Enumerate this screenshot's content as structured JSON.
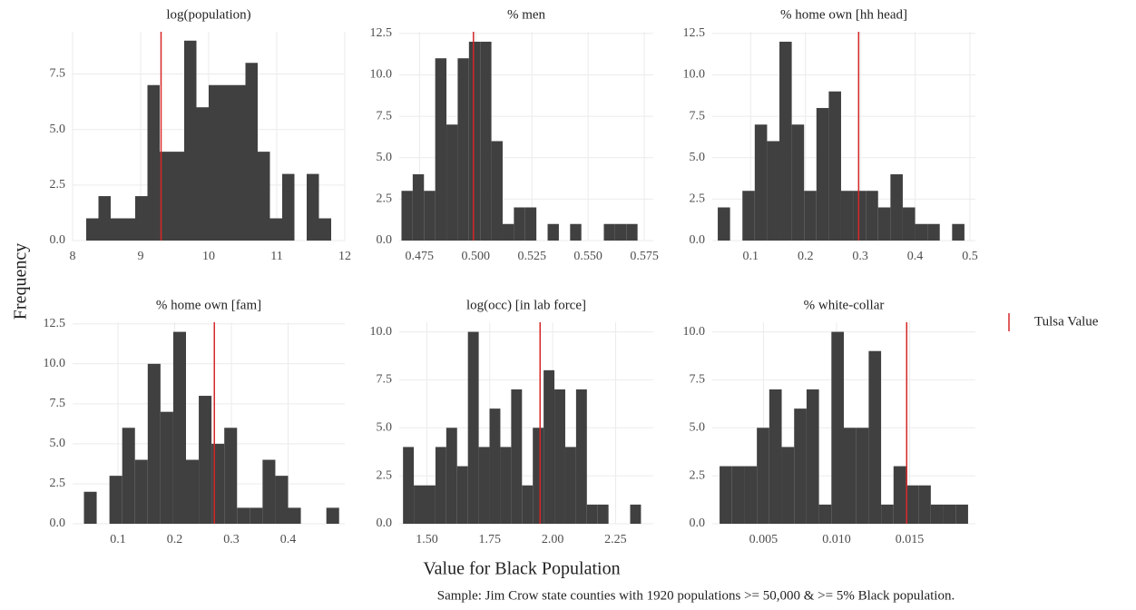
{
  "chart_data": [
    {
      "type": "histogram",
      "title": "log(population)",
      "color": "#404040",
      "grid": true,
      "bins": [
        8.2,
        8.38,
        8.56,
        8.74,
        8.92,
        9.1,
        9.28,
        9.46,
        9.64,
        9.82,
        10,
        10.18,
        10.36,
        10.54,
        10.72,
        10.9,
        11.08,
        11.26,
        11.44,
        11.62,
        11.8
      ],
      "values": [
        1,
        2,
        1,
        1,
        2,
        7,
        4,
        4,
        9,
        6,
        7,
        7,
        7,
        8,
        4,
        1,
        3,
        0,
        3,
        1
      ],
      "xlim": [
        8,
        12
      ],
      "xticks": [
        8,
        9,
        10,
        11,
        12
      ],
      "ylim": [
        0,
        9.4
      ],
      "yticks": [
        {
          "value": 0,
          "label": "0.0"
        },
        2.5,
        {
          "value": 5,
          "label": "5.0"
        },
        7.5
      ],
      "reference_line": 9.3,
      "reference_color": "#d62728"
    },
    {
      "type": "histogram",
      "title": "% men",
      "color": "#404040",
      "grid": true,
      "bins": [
        0.467,
        0.472,
        0.477,
        0.482,
        0.487,
        0.492,
        0.497,
        0.502,
        0.507,
        0.512,
        0.517,
        0.522,
        0.527,
        0.532,
        0.537,
        0.542,
        0.547,
        0.552,
        0.557,
        0.562,
        0.567,
        0.572
      ],
      "values": [
        3,
        4,
        3,
        11,
        7,
        11,
        12,
        12,
        6,
        1,
        2,
        2,
        0,
        1,
        0,
        1,
        0,
        0,
        1,
        1,
        1
      ],
      "xlim": [
        0.466,
        0.579
      ],
      "xticks": [
        0.475,
        {
          "value": 0.5,
          "label": "0.500"
        },
        0.525,
        {
          "value": 0.55,
          "label": "0.550"
        },
        0.575
      ],
      "ylim": [
        0,
        12.6
      ],
      "yticks": [
        {
          "value": 0,
          "label": "0.0"
        },
        2.5,
        {
          "value": 5,
          "label": "5.0"
        },
        7.5,
        {
          "value": 10,
          "label": "10.0"
        },
        12.5
      ],
      "reference_line": 0.499,
      "reference_color": "#d62728"
    },
    {
      "type": "histogram",
      "title": "% home own [hh head]",
      "color": "#404040",
      "grid": true,
      "bins": [
        0.04,
        0.0625,
        0.085,
        0.1075,
        0.13,
        0.1525,
        0.175,
        0.1975,
        0.22,
        0.2425,
        0.265,
        0.2875,
        0.31,
        0.3325,
        0.355,
        0.3775,
        0.4,
        0.4225,
        0.445,
        0.4675,
        0.49
      ],
      "values": [
        2,
        0,
        3,
        7,
        6,
        12,
        7,
        3,
        8,
        9,
        3,
        3,
        3,
        2,
        4,
        2,
        1,
        1,
        0,
        1
      ],
      "xlim": [
        0.03,
        0.51
      ],
      "xticks": [
        0.1,
        0.2,
        0.3,
        0.4,
        0.5
      ],
      "ylim": [
        0,
        12.6
      ],
      "yticks": [
        {
          "value": 0,
          "label": "0.0"
        },
        2.5,
        {
          "value": 5,
          "label": "5.0"
        },
        7.5,
        {
          "value": 10,
          "label": "10.0"
        },
        12.5
      ],
      "reference_line": 0.297,
      "reference_color": "#d62728"
    },
    {
      "type": "histogram",
      "title": "% home own [fam]",
      "color": "#404040",
      "grid": true,
      "bins": [
        0.04,
        0.0625,
        0.085,
        0.1075,
        0.13,
        0.1525,
        0.175,
        0.1975,
        0.22,
        0.2425,
        0.265,
        0.2875,
        0.31,
        0.3325,
        0.355,
        0.3775,
        0.4,
        0.4225,
        0.445,
        0.4675,
        0.49
      ],
      "values": [
        2,
        0,
        3,
        6,
        4,
        10,
        7,
        12,
        4,
        8,
        5,
        6,
        1,
        1,
        4,
        3,
        1,
        0,
        0,
        1
      ],
      "xlim": [
        0.02,
        0.5
      ],
      "xticks": [
        0.1,
        0.2,
        0.3,
        0.4
      ],
      "ylim": [
        0,
        12.6
      ],
      "yticks": [
        {
          "value": 0,
          "label": "0.0"
        },
        2.5,
        {
          "value": 5,
          "label": "5.0"
        },
        7.5,
        {
          "value": 10,
          "label": "10.0"
        },
        12.5
      ],
      "reference_line": 0.27,
      "reference_color": "#d62728"
    },
    {
      "type": "histogram",
      "title": "log(occ) [in lab force]",
      "color": "#404040",
      "grid": true,
      "bins": [
        1.405,
        1.448,
        1.491,
        1.534,
        1.577,
        1.62,
        1.663,
        1.706,
        1.749,
        1.792,
        1.835,
        1.878,
        1.921,
        1.964,
        2.007,
        2.05,
        2.093,
        2.136,
        2.179,
        2.222,
        2.265,
        2.308,
        2.351
      ],
      "values": [
        4,
        2,
        2,
        4,
        5,
        3,
        10,
        4,
        6,
        4,
        7,
        2,
        5,
        8,
        7,
        4,
        7,
        1,
        1,
        0,
        0,
        1
      ],
      "xlim": [
        1.39,
        2.4
      ],
      "xticks": [
        {
          "value": 1.5,
          "label": "1.50"
        },
        1.75,
        {
          "value": 2,
          "label": "2.00"
        },
        2.25
      ],
      "ylim": [
        0,
        10.5
      ],
      "yticks": [
        {
          "value": 0,
          "label": "0.0"
        },
        2.5,
        {
          "value": 5,
          "label": "5.0"
        },
        7.5,
        {
          "value": 10,
          "label": "10.0"
        }
      ],
      "reference_line": 1.95,
      "reference_color": "#d62728"
    },
    {
      "type": "histogram",
      "title": "% white-collar",
      "color": "#404040",
      "grid": true,
      "bins": [
        0.002,
        0.00285,
        0.0037,
        0.00455,
        0.0054,
        0.00625,
        0.0071,
        0.00795,
        0.0088,
        0.00965,
        0.0105,
        0.01135,
        0.0122,
        0.01305,
        0.0139,
        0.01475,
        0.0156,
        0.01645,
        0.0173,
        0.01815,
        0.019
      ],
      "values": [
        3,
        3,
        3,
        5,
        7,
        4,
        6,
        7,
        1,
        10,
        5,
        5,
        9,
        1,
        3,
        2,
        2,
        1,
        1,
        1
      ],
      "xlim": [
        0.0015,
        0.0195
      ],
      "xticks": [
        0.005,
        {
          "value": 0.01,
          "label": "0.010"
        },
        0.015
      ],
      "ylim": [
        0,
        10.5
      ],
      "yticks": [
        {
          "value": 0,
          "label": "0.0"
        },
        2.5,
        {
          "value": 5,
          "label": "5.0"
        },
        7.5,
        {
          "value": 10,
          "label": "10.0"
        }
      ],
      "reference_line": 0.0148,
      "reference_color": "#d62728"
    }
  ],
  "x_label": "Value for Black Population",
  "y_label": "Frequency",
  "legend": {
    "name": "Tulsa Value",
    "color": "#d62728"
  },
  "caption": "Sample: Jim Crow state counties with 1920 populations >= 50,000 & >= 5% Black population."
}
